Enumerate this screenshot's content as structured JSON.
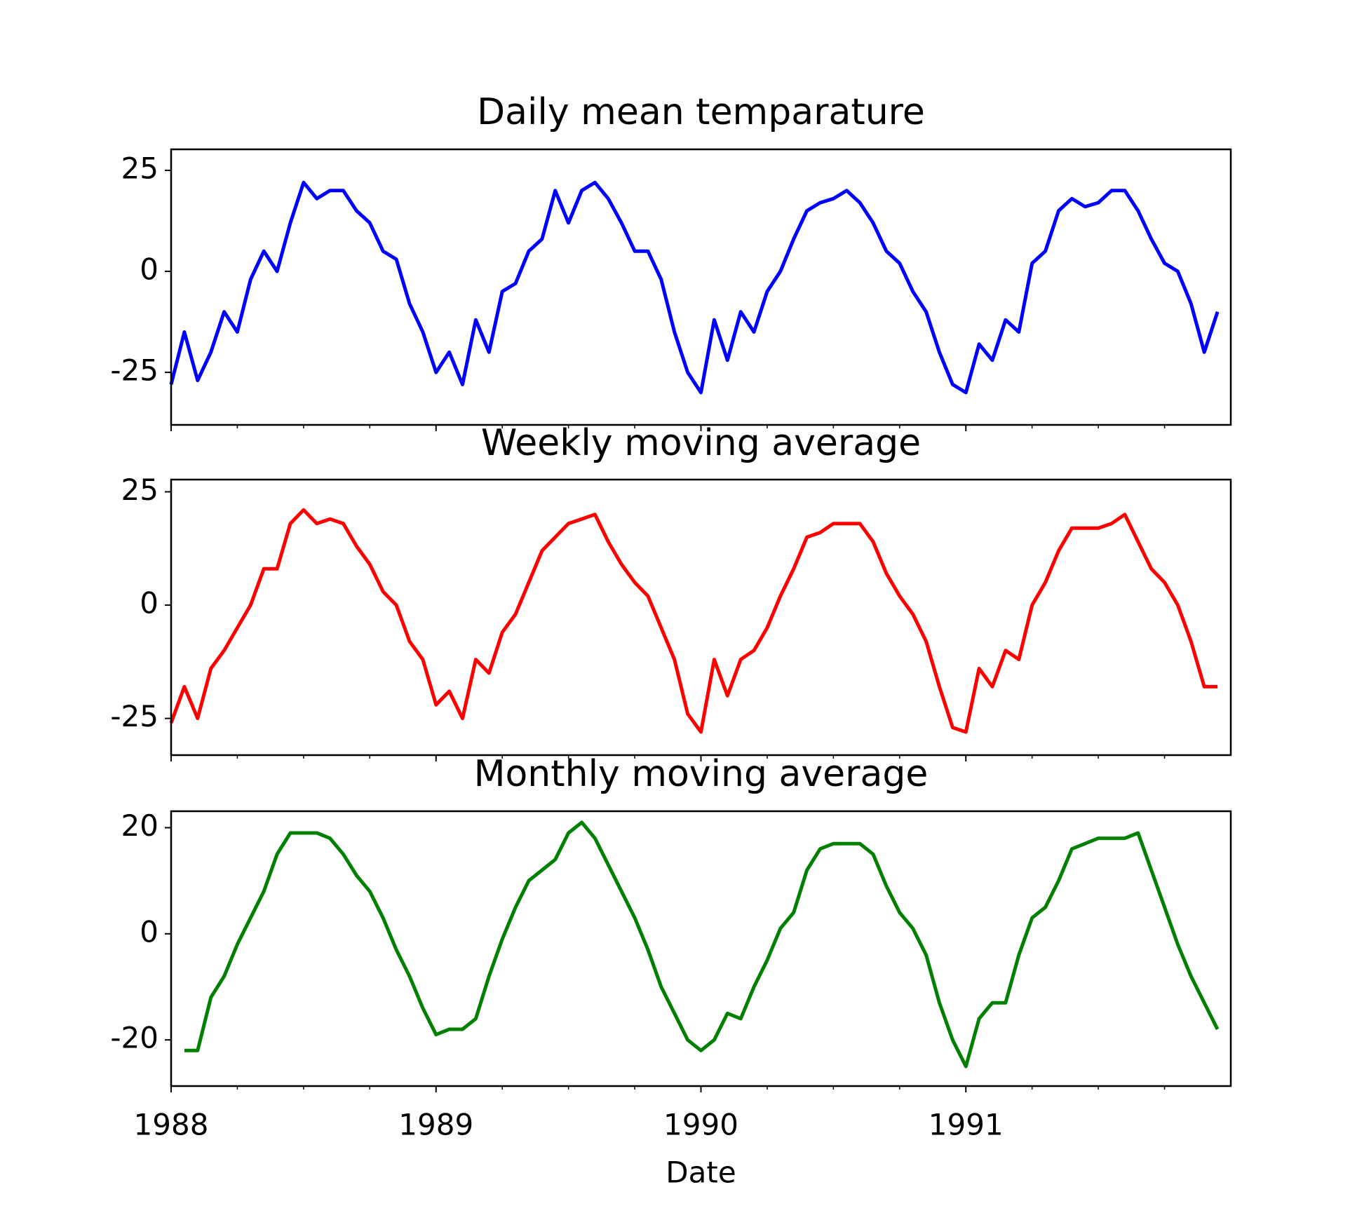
{
  "chart_data": [
    {
      "type": "line",
      "title": "Daily mean temparature",
      "x": [
        1988.0,
        1988.05,
        1988.1,
        1988.15,
        1988.2,
        1988.25,
        1988.3,
        1988.35,
        1988.4,
        1988.45,
        1988.5,
        1988.55,
        1988.6,
        1988.65,
        1988.7,
        1988.75,
        1988.8,
        1988.85,
        1988.9,
        1988.95,
        1989.0,
        1989.05,
        1989.1,
        1989.15,
        1989.2,
        1989.25,
        1989.3,
        1989.35,
        1989.4,
        1989.45,
        1989.5,
        1989.55,
        1989.6,
        1989.65,
        1989.7,
        1989.75,
        1989.8,
        1989.85,
        1989.9,
        1989.95,
        1990.0,
        1990.05,
        1990.1,
        1990.15,
        1990.2,
        1990.25,
        1990.3,
        1990.35,
        1990.4,
        1990.45,
        1990.5,
        1990.55,
        1990.6,
        1990.65,
        1990.7,
        1990.75,
        1990.8,
        1990.85,
        1990.9,
        1990.95,
        1991.0,
        1991.05,
        1991.1,
        1991.15,
        1991.2,
        1991.25,
        1991.3,
        1991.35,
        1991.4,
        1991.45,
        1991.5,
        1991.55,
        1991.6,
        1991.65,
        1991.7,
        1991.75,
        1991.8,
        1991.85,
        1991.9,
        1991.95
      ],
      "series": [
        {
          "color": "#0000ff",
          "values": [
            -28,
            -15,
            -27,
            -20,
            -10,
            -15,
            -2,
            5,
            0,
            12,
            22,
            18,
            20,
            20,
            15,
            12,
            5,
            3,
            -8,
            -15,
            -25,
            -20,
            -28,
            -12,
            -20,
            -5,
            -3,
            5,
            8,
            20,
            12,
            20,
            22,
            18,
            12,
            5,
            5,
            -2,
            -15,
            -25,
            -30,
            -12,
            -22,
            -10,
            -15,
            -5,
            0,
            8,
            15,
            17,
            18,
            20,
            17,
            12,
            5,
            2,
            -5,
            -10,
            -20,
            -28,
            -30,
            -18,
            -22,
            -12,
            -15,
            2,
            5,
            15,
            18,
            16,
            17,
            20,
            20,
            15,
            8,
            2,
            0,
            -8,
            -20,
            -10
          ]
        }
      ],
      "xlim": [
        1988,
        1992
      ],
      "xticks": [
        1988,
        1989,
        1990,
        1991
      ],
      "xminorticks": [
        1988.25,
        1988.5,
        1988.75,
        1989.25,
        1989.5,
        1989.75,
        1990.25,
        1990.5,
        1990.75,
        1991.25,
        1991.5,
        1991.75
      ],
      "ylim": [
        -38,
        30.2
      ],
      "yticks": [
        -25,
        0,
        25
      ]
    },
    {
      "type": "line",
      "title": "Weekly moving average",
      "x": [
        1988.0,
        1988.05,
        1988.1,
        1988.15,
        1988.2,
        1988.25,
        1988.3,
        1988.35,
        1988.4,
        1988.45,
        1988.5,
        1988.55,
        1988.6,
        1988.65,
        1988.7,
        1988.75,
        1988.8,
        1988.85,
        1988.9,
        1988.95,
        1989.0,
        1989.05,
        1989.1,
        1989.15,
        1989.2,
        1989.25,
        1989.3,
        1989.35,
        1989.4,
        1989.45,
        1989.5,
        1989.55,
        1989.6,
        1989.65,
        1989.7,
        1989.75,
        1989.8,
        1989.85,
        1989.9,
        1989.95,
        1990.0,
        1990.05,
        1990.1,
        1990.15,
        1990.2,
        1990.25,
        1990.3,
        1990.35,
        1990.4,
        1990.45,
        1990.5,
        1990.55,
        1990.6,
        1990.65,
        1990.7,
        1990.75,
        1990.8,
        1990.85,
        1990.9,
        1990.95,
        1991.0,
        1991.05,
        1991.1,
        1991.15,
        1991.2,
        1991.25,
        1991.3,
        1991.35,
        1991.4,
        1991.45,
        1991.5,
        1991.55,
        1991.6,
        1991.65,
        1991.7,
        1991.75,
        1991.8,
        1991.85,
        1991.9,
        1991.95
      ],
      "series": [
        {
          "color": "#ff0000",
          "values": [
            -26,
            -18,
            -25,
            -14,
            -10,
            -5,
            0,
            8,
            8,
            18,
            21,
            18,
            19,
            18,
            13,
            9,
            3,
            0,
            -8,
            -12,
            -22,
            -19,
            -25,
            -12,
            -15,
            -6,
            -2,
            5,
            12,
            15,
            18,
            19,
            20,
            14,
            9,
            5,
            2,
            -5,
            -12,
            -24,
            -28,
            -12,
            -20,
            -12,
            -10,
            -5,
            2,
            8,
            15,
            16,
            18,
            18,
            18,
            14,
            7,
            2,
            -2,
            -8,
            -18,
            -27,
            -28,
            -14,
            -18,
            -10,
            -12,
            0,
            5,
            12,
            17,
            17,
            17,
            18,
            20,
            14,
            8,
            5,
            0,
            -8,
            -18,
            -18
          ]
        }
      ],
      "xlim": [
        1988,
        1992
      ],
      "xticks": [
        1988,
        1989,
        1990,
        1991
      ],
      "xminorticks": [
        1988.25,
        1988.5,
        1988.75,
        1989.25,
        1989.5,
        1989.75,
        1990.25,
        1990.5,
        1990.75,
        1991.25,
        1991.5,
        1991.75
      ],
      "ylim": [
        -33.1,
        27.7
      ],
      "yticks": [
        -25,
        0,
        25
      ]
    },
    {
      "type": "line",
      "title": "Monthly moving average",
      "xlabel": "Date",
      "x": [
        1988.0,
        1988.05,
        1988.1,
        1988.15,
        1988.2,
        1988.25,
        1988.3,
        1988.35,
        1988.4,
        1988.45,
        1988.5,
        1988.55,
        1988.6,
        1988.65,
        1988.7,
        1988.75,
        1988.8,
        1988.85,
        1988.9,
        1988.95,
        1989.0,
        1989.05,
        1989.1,
        1989.15,
        1989.2,
        1989.25,
        1989.3,
        1989.35,
        1989.4,
        1989.45,
        1989.5,
        1989.55,
        1989.6,
        1989.65,
        1989.7,
        1989.75,
        1989.8,
        1989.85,
        1989.9,
        1989.95,
        1990.0,
        1990.05,
        1990.1,
        1990.15,
        1990.2,
        1990.25,
        1990.3,
        1990.35,
        1990.4,
        1990.45,
        1990.5,
        1990.55,
        1990.6,
        1990.65,
        1990.7,
        1990.75,
        1990.8,
        1990.85,
        1990.9,
        1990.95,
        1991.0,
        1991.05,
        1991.1,
        1991.15,
        1991.2,
        1991.25,
        1991.3,
        1991.35,
        1991.4,
        1991.45,
        1991.5,
        1991.55,
        1991.6,
        1991.65,
        1991.7,
        1991.75,
        1991.8,
        1991.85,
        1991.9,
        1991.95
      ],
      "series": [
        {
          "color": "#008000",
          "values": [
            null,
            -22,
            -22,
            -12,
            -8,
            -2,
            3,
            8,
            15,
            19,
            19,
            19,
            18,
            15,
            11,
            8,
            3,
            -3,
            -8,
            -14,
            -19,
            -18,
            -18,
            -16,
            -8,
            -1,
            5,
            10,
            12,
            14,
            19,
            21,
            18,
            13,
            8,
            3,
            -3,
            -10,
            -15,
            -20,
            -22,
            -20,
            -15,
            -16,
            -10,
            -5,
            1,
            4,
            12,
            16,
            17,
            17,
            17,
            15,
            9,
            4,
            1,
            -4,
            -13,
            -20,
            -25,
            -16,
            -13,
            -13,
            -4,
            3,
            5,
            10,
            16,
            17,
            18,
            18,
            18,
            19,
            12,
            5,
            -2,
            -8,
            -13,
            -18
          ]
        }
      ],
      "xlim": [
        1988,
        1992
      ],
      "xticks": [
        1988,
        1989,
        1990,
        1991
      ],
      "xminorticks": [
        1988.25,
        1988.5,
        1988.75,
        1989.25,
        1989.5,
        1989.75,
        1990.25,
        1990.5,
        1990.75,
        1991.25,
        1991.5,
        1991.75
      ],
      "ylim": [
        -28.7,
        23.1
      ],
      "yticks": [
        -20,
        0,
        20
      ]
    }
  ]
}
